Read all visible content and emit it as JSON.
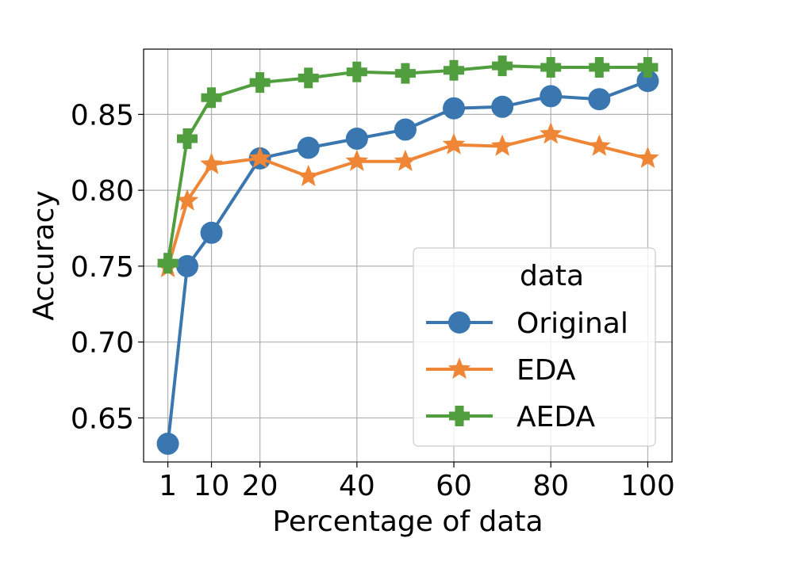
{
  "chart_data": {
    "type": "line",
    "xlabel": "Percentage of data",
    "ylabel": "Accuracy",
    "xlim": [
      -4,
      105
    ],
    "ylim": [
      0.621,
      0.893
    ],
    "x_ticks": [
      1,
      10,
      20,
      40,
      60,
      80,
      100
    ],
    "x_tick_labels": [
      "1",
      "10",
      "20",
      "40",
      "60",
      "80",
      "100"
    ],
    "y_ticks": [
      0.65,
      0.7,
      0.75,
      0.8,
      0.85
    ],
    "y_tick_labels": [
      "0.65",
      "0.70",
      "0.75",
      "0.80",
      "0.85"
    ],
    "grid": true,
    "legend": {
      "title": "data",
      "position": "lower-right"
    },
    "x": [
      1,
      5,
      10,
      20,
      30,
      40,
      50,
      60,
      70,
      80,
      90,
      100
    ],
    "series": [
      {
        "name": "Original",
        "marker": "circle",
        "color": "#3a76af",
        "values": [
          0.633,
          0.75,
          0.772,
          0.821,
          0.828,
          0.834,
          0.84,
          0.854,
          0.855,
          0.862,
          0.86,
          0.872
        ]
      },
      {
        "name": "EDA",
        "marker": "star",
        "color": "#ef8636",
        "values": [
          0.749,
          0.793,
          0.817,
          0.821,
          0.809,
          0.819,
          0.819,
          0.83,
          0.829,
          0.837,
          0.829,
          0.821
        ]
      },
      {
        "name": "AEDA",
        "marker": "plus",
        "color": "#519e3e",
        "values": [
          0.752,
          0.834,
          0.861,
          0.871,
          0.874,
          0.878,
          0.877,
          0.879,
          0.882,
          0.881,
          0.881,
          0.881
        ]
      }
    ]
  }
}
